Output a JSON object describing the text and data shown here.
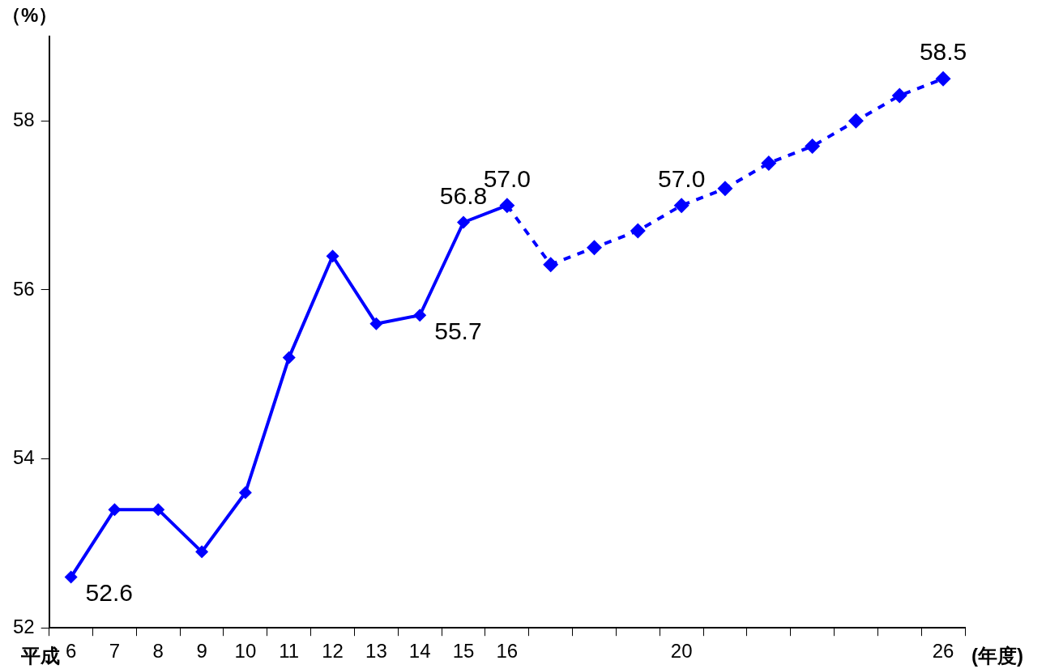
{
  "chart_data": {
    "type": "line",
    "ylabel": "（%）",
    "xlabel": "(年度)",
    "annotations": [
      "平成"
    ],
    "categories": [
      "6",
      "7",
      "8",
      "9",
      "10",
      "11",
      "12",
      "13",
      "14",
      "15",
      "16",
      null,
      null,
      null,
      "20",
      null,
      null,
      null,
      null,
      null,
      "26"
    ],
    "ylim": [
      52,
      59
    ],
    "yticks": [
      52,
      54,
      56,
      58
    ],
    "grid": false,
    "legend": false,
    "marker": "diamond",
    "series": [
      {
        "color": "#0000ff",
        "line_style": "solid",
        "values": [
          52.6,
          53.4,
          53.4,
          52.9,
          53.6,
          55.2,
          56.4,
          55.6,
          55.7,
          56.8,
          57.0,
          null,
          null,
          null,
          null,
          null,
          null,
          null,
          null,
          null,
          null
        ],
        "value_labels": [
          "52.6",
          null,
          null,
          null,
          null,
          null,
          null,
          null,
          "55.7",
          "56.8",
          "57.0",
          null,
          null,
          null,
          null,
          null,
          null,
          null,
          null,
          null,
          null
        ]
      },
      {
        "color": "#0000ff",
        "line_style": "dashed",
        "values": [
          null,
          null,
          null,
          null,
          null,
          null,
          null,
          null,
          null,
          null,
          57.0,
          56.3,
          56.5,
          56.7,
          57.0,
          57.2,
          57.5,
          57.7,
          58.0,
          58.3,
          58.5
        ],
        "value_labels": [
          null,
          null,
          null,
          null,
          null,
          null,
          null,
          null,
          null,
          null,
          null,
          null,
          null,
          null,
          "57.0",
          null,
          null,
          null,
          null,
          null,
          "58.5"
        ]
      }
    ]
  }
}
